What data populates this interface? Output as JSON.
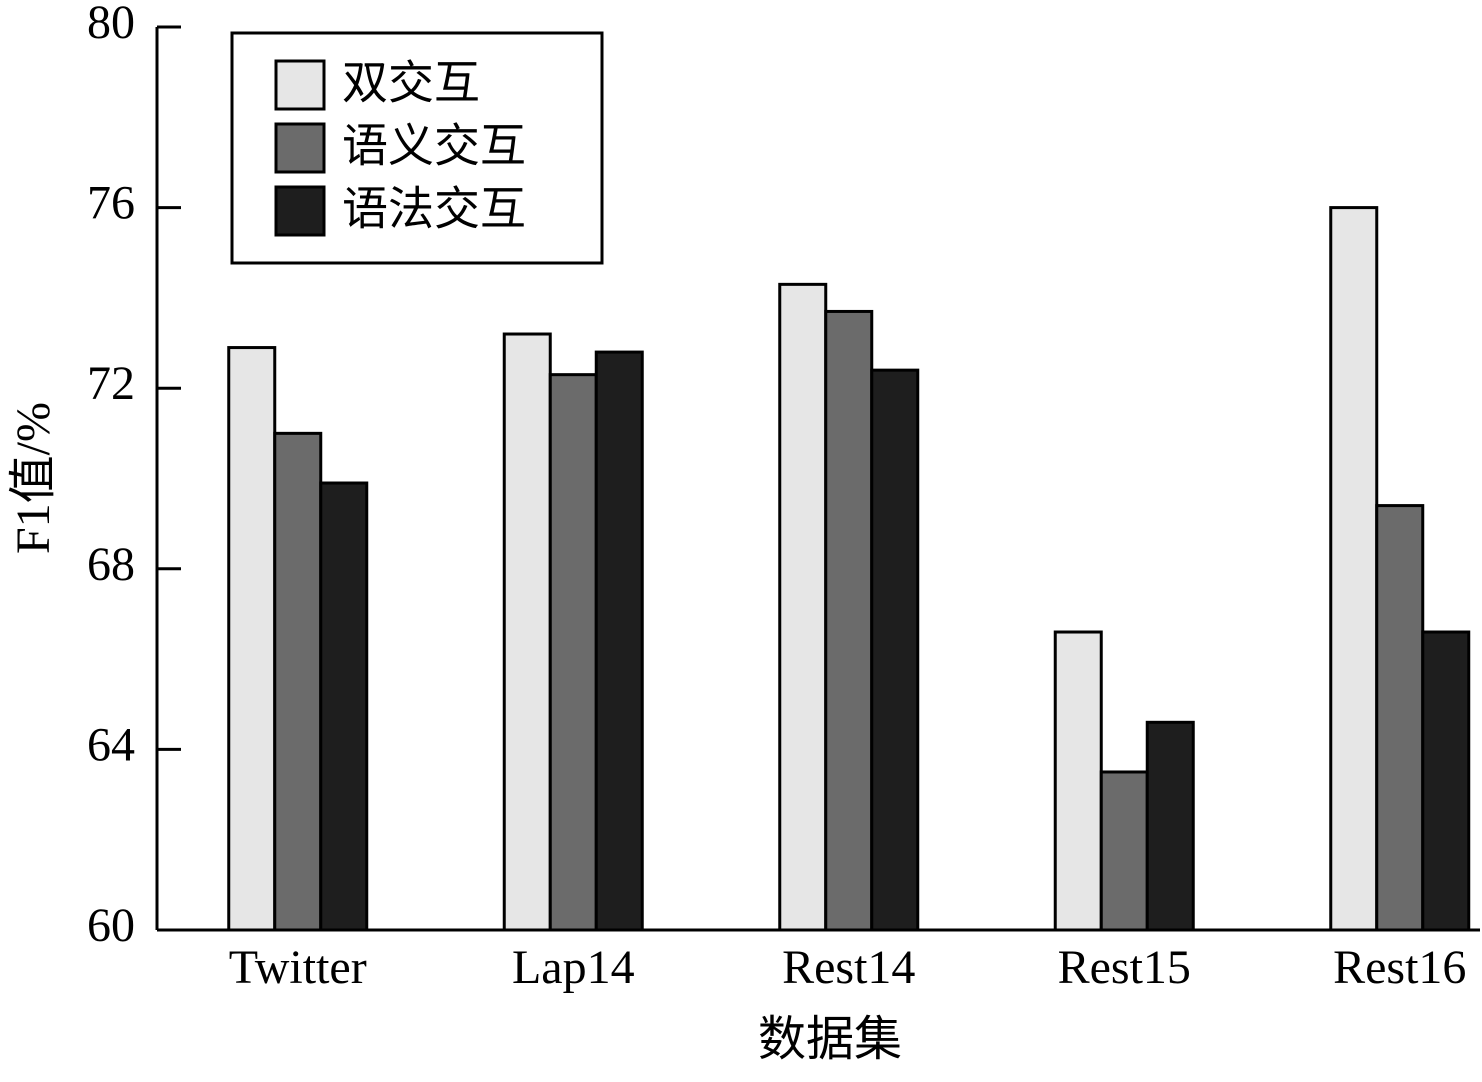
{
  "chart_data": {
    "type": "bar",
    "x_label": "数据集",
    "y_label": "F1值/%",
    "categories": [
      "Twitter",
      "Lap14",
      "Rest14",
      "Rest15",
      "Rest16"
    ],
    "series": [
      {
        "name": "双交互",
        "color": "#e6e6e6",
        "values": [
          72.9,
          73.2,
          74.3,
          66.6,
          76.0
        ]
      },
      {
        "name": "语义交互",
        "color": "#6b6b6b",
        "values": [
          71.0,
          72.3,
          73.7,
          63.5,
          69.4
        ]
      },
      {
        "name": "语法交互",
        "color": "#1e1e1e",
        "values": [
          69.9,
          72.8,
          72.4,
          64.6,
          66.6
        ]
      }
    ],
    "ylim": [
      60,
      80
    ],
    "yticks": [
      60,
      64,
      68,
      72,
      76,
      80
    ],
    "legend": "upper left"
  }
}
